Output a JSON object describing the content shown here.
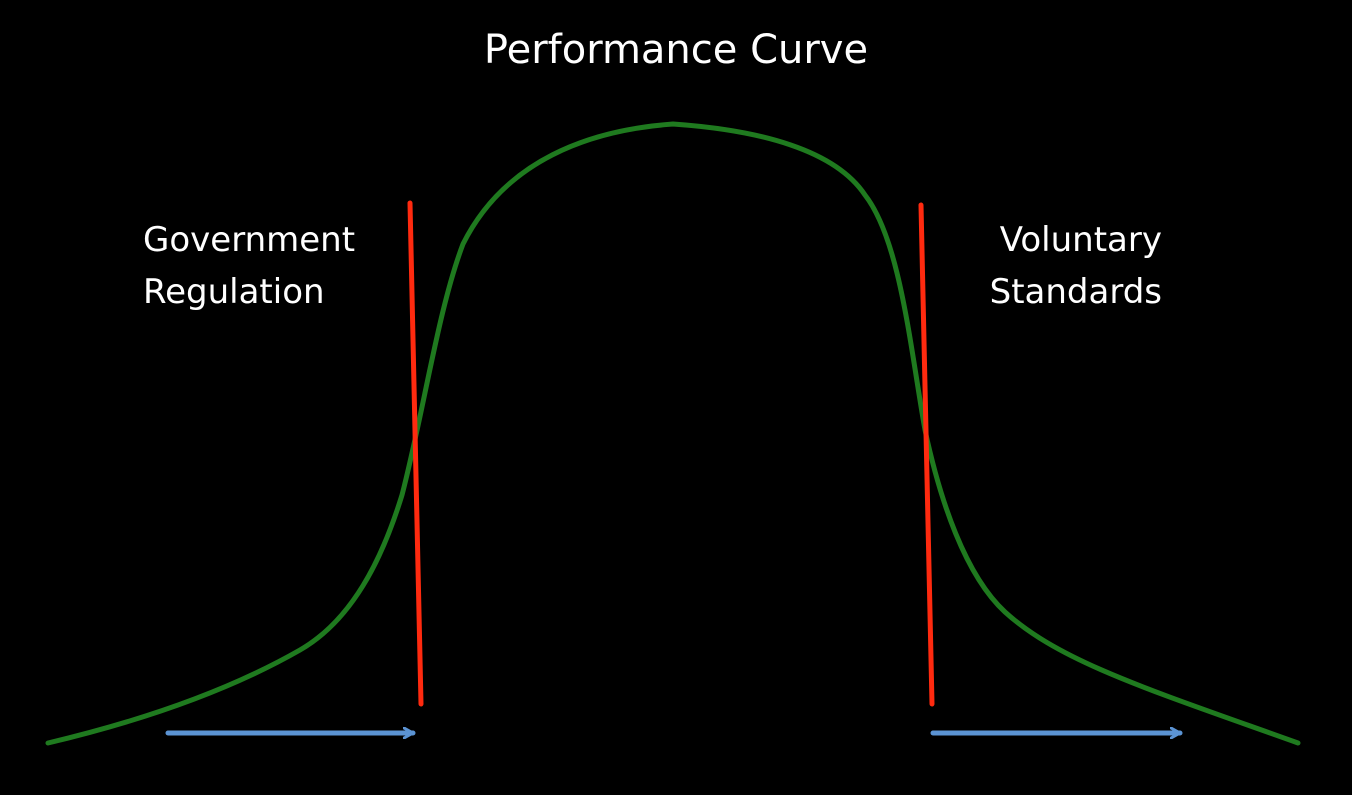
{
  "title": "Performance Curve",
  "left_label": {
    "line1": "Government",
    "line2": "Regulation"
  },
  "right_label": {
    "line1": "Voluntary",
    "line2": "Standards"
  },
  "colors": {
    "background": "#000000",
    "text": "#ffffff",
    "curve": "#1f7a1f",
    "threshold_lines": "#ff2a0f",
    "arrows": "#5b93d3"
  },
  "icons": {
    "left_arrow": "arrow-right-icon",
    "right_arrow": "arrow-right-icon"
  }
}
